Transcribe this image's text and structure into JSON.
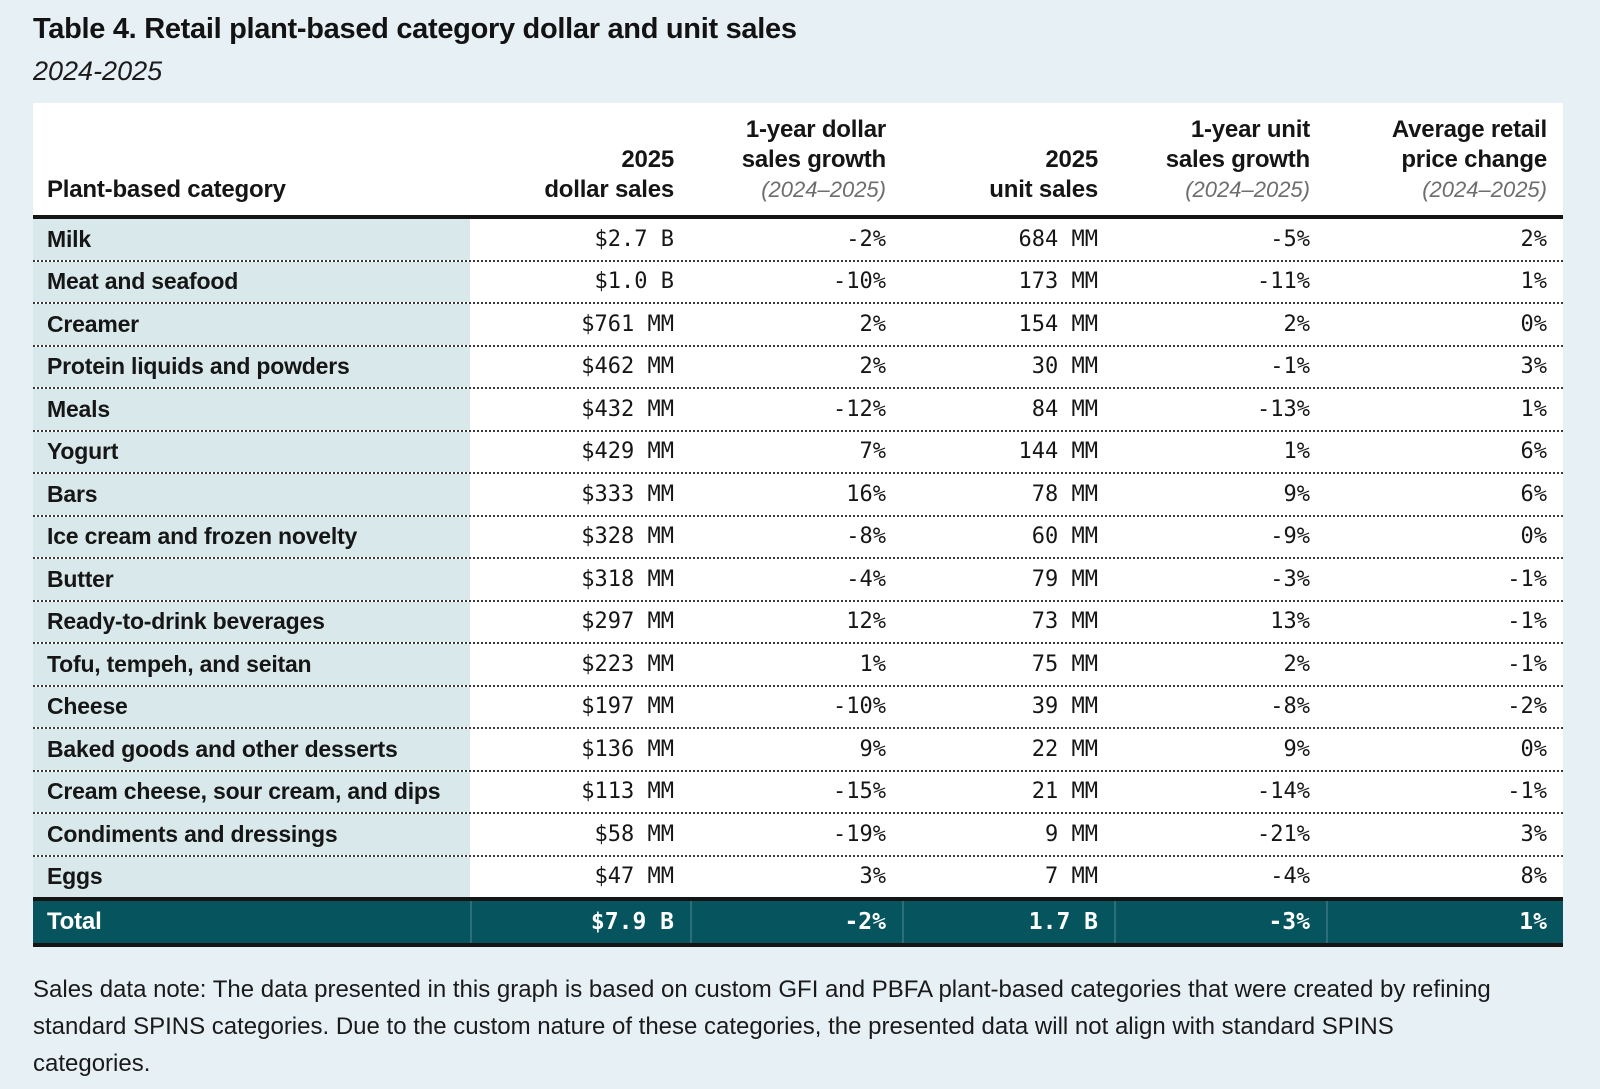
{
  "page": {
    "title": "Table 4. Retail plant-based category dollar and unit sales",
    "subtitle": "2024-2025",
    "sales_data_note": "Sales data note: The data presented in this graph is based on custom GFI and PBFA plant-based categories that were created by refining standard SPINS categories. Due to the custom nature of these categories, the presented data will not align with standard SPINS categories."
  },
  "colors": {
    "page_background": "#e7f0f5",
    "table_background": "#ffffff",
    "category_column_background": "#d9e8ea",
    "total_row_background": "#06545e",
    "total_row_text": "#ffffff",
    "header_subnote_gray": "#6d6d6d",
    "rule_black": "#151515"
  },
  "chart_data": {
    "type": "table",
    "title": "Table 4. Retail plant-based category dollar and unit sales",
    "subtitle": "2024-2025",
    "columns": [
      {
        "id": "category",
        "label": "Plant-based category"
      },
      {
        "id": "dollar_sales_2025",
        "line1": "2025",
        "line2": "dollar sales"
      },
      {
        "id": "dollar_sales_growth_1yr",
        "line1": "1-year dollar",
        "line2": "sales growth",
        "sub": "(2024–2025)"
      },
      {
        "id": "unit_sales_2025",
        "line1": "2025",
        "line2": "unit sales"
      },
      {
        "id": "unit_sales_growth_1yr",
        "line1": "1-year unit",
        "line2": "sales growth",
        "sub": "(2024–2025)"
      },
      {
        "id": "avg_retail_price_change",
        "line1": "Average retail",
        "line2": "price change",
        "sub": "(2024–2025)"
      }
    ],
    "rows": [
      [
        "Milk",
        "$2.7 B",
        "-2%",
        "684 MM",
        "-5%",
        "2%"
      ],
      [
        "Meat and seafood",
        "$1.0 B",
        "-10%",
        "173 MM",
        "-11%",
        "1%"
      ],
      [
        "Creamer",
        "$761 MM",
        "2%",
        "154 MM",
        "2%",
        "0%"
      ],
      [
        "Protein liquids and powders",
        "$462 MM",
        "2%",
        "30 MM",
        "-1%",
        "3%"
      ],
      [
        "Meals",
        "$432 MM",
        "-12%",
        "84 MM",
        "-13%",
        "1%"
      ],
      [
        "Yogurt",
        "$429 MM",
        "7%",
        "144 MM",
        "1%",
        "6%"
      ],
      [
        "Bars",
        "$333 MM",
        "16%",
        "78 MM",
        "9%",
        "6%"
      ],
      [
        "Ice cream and frozen novelty",
        "$328 MM",
        "-8%",
        "60 MM",
        "-9%",
        "0%"
      ],
      [
        "Butter",
        "$318 MM",
        "-4%",
        "79 MM",
        "-3%",
        "-1%"
      ],
      [
        "Ready-to-drink beverages",
        "$297 MM",
        "12%",
        "73 MM",
        "13%",
        "-1%"
      ],
      [
        "Tofu, tempeh, and seitan",
        "$223 MM",
        "1%",
        "75 MM",
        "2%",
        "-1%"
      ],
      [
        "Cheese",
        "$197 MM",
        "-10%",
        "39 MM",
        "-8%",
        "-2%"
      ],
      [
        "Baked goods and other desserts",
        "$136 MM",
        "9%",
        "22 MM",
        "9%",
        "0%"
      ],
      [
        "Cream cheese, sour cream, and dips",
        "$113 MM",
        "-15%",
        "21 MM",
        "-14%",
        "-1%"
      ],
      [
        "Condiments and dressings",
        "$58 MM",
        "-19%",
        "9 MM",
        "-21%",
        "3%"
      ],
      [
        "Eggs",
        "$47 MM",
        "3%",
        "7 MM",
        "-4%",
        "8%"
      ]
    ],
    "total": [
      "Total",
      "$7.9 B",
      "-2%",
      "1.7 B",
      "-3%",
      "1%"
    ]
  }
}
